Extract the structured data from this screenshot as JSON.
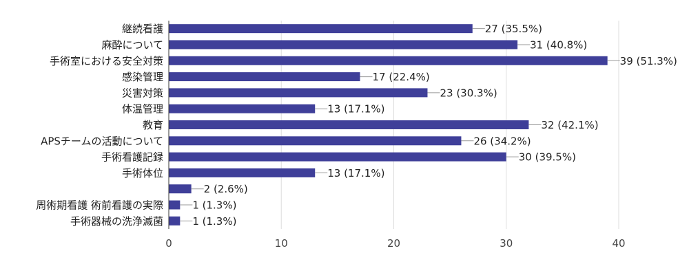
{
  "chart_data": {
    "type": "bar",
    "orientation": "horizontal",
    "categories": [
      "継続看護",
      "麻酔について",
      "手術室における安全対策",
      "感染管理",
      "災害対策",
      "体温管理",
      "教育",
      "APSチームの活動について",
      "手術看護記録",
      "手術体位",
      "",
      "周術期看護 術前看護の実際",
      "手術器械の洗浄滅菌"
    ],
    "values": [
      27,
      31,
      39,
      17,
      23,
      13,
      32,
      26,
      30,
      13,
      2,
      1,
      1
    ],
    "data_labels": [
      "27 (35.5%)",
      "31 (40.8%)",
      "39 (51.3%)",
      "17 (22.4%)",
      "23 (30.3%)",
      "13 (17.1%)",
      "32 (42.1%)",
      "26 (34.2%)",
      "30 (39.5%)",
      "13 (17.1%)",
      "2 (2.6%)",
      "1 (1.3%)",
      "1 (1.3%)"
    ],
    "xlim": [
      0,
      40
    ],
    "x_ticks": [
      0,
      10,
      20,
      30,
      40
    ],
    "grid": true,
    "bar_color": "#3f3f99",
    "gridline_color": "#dddddd",
    "leader_line_color": "#999999"
  }
}
